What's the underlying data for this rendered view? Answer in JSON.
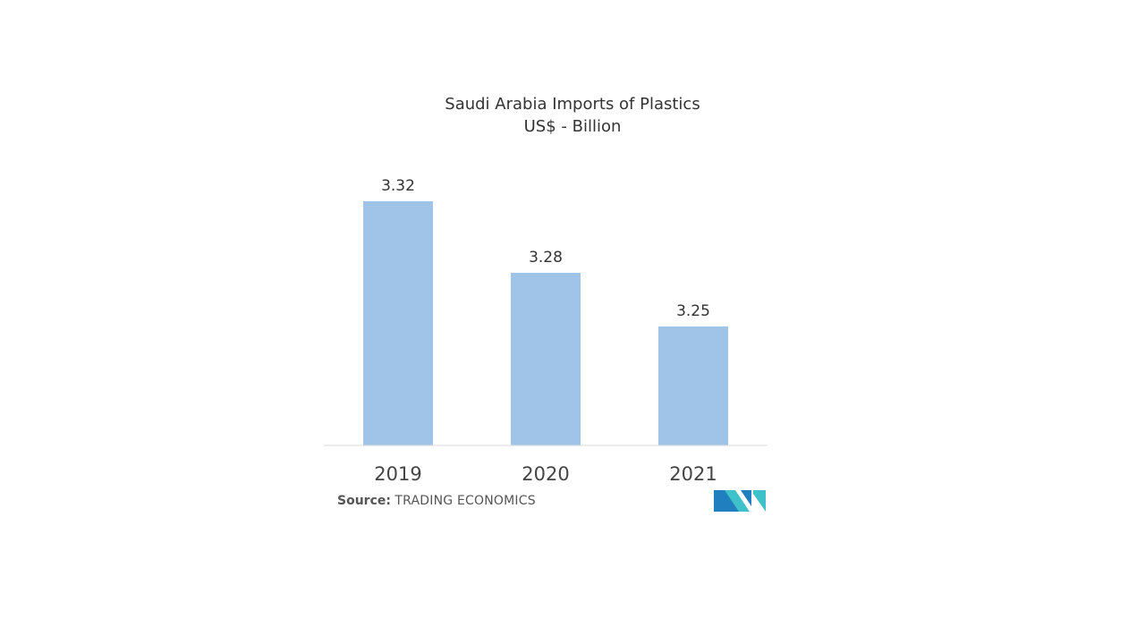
{
  "chart_data": {
    "type": "bar",
    "title": "Saudi Arabia Imports of Plastics",
    "subtitle": "US$ - Billion",
    "categories": [
      "2019",
      "2020",
      "2021"
    ],
    "values": [
      3.32,
      3.28,
      3.25
    ],
    "data_labels": [
      "3.32",
      "3.28",
      "3.25"
    ],
    "xlabel": "",
    "ylabel": "",
    "grid": false,
    "legend": "none",
    "bar_color": "#a0c4e8",
    "axis_color": "#d9d9d9"
  },
  "source": {
    "label": "Source:",
    "name": "TRADING ECONOMICS"
  },
  "logo": {
    "icon": "mordor-logo-icon",
    "colors": [
      "#1f7fbf",
      "#3fc1c9"
    ]
  }
}
